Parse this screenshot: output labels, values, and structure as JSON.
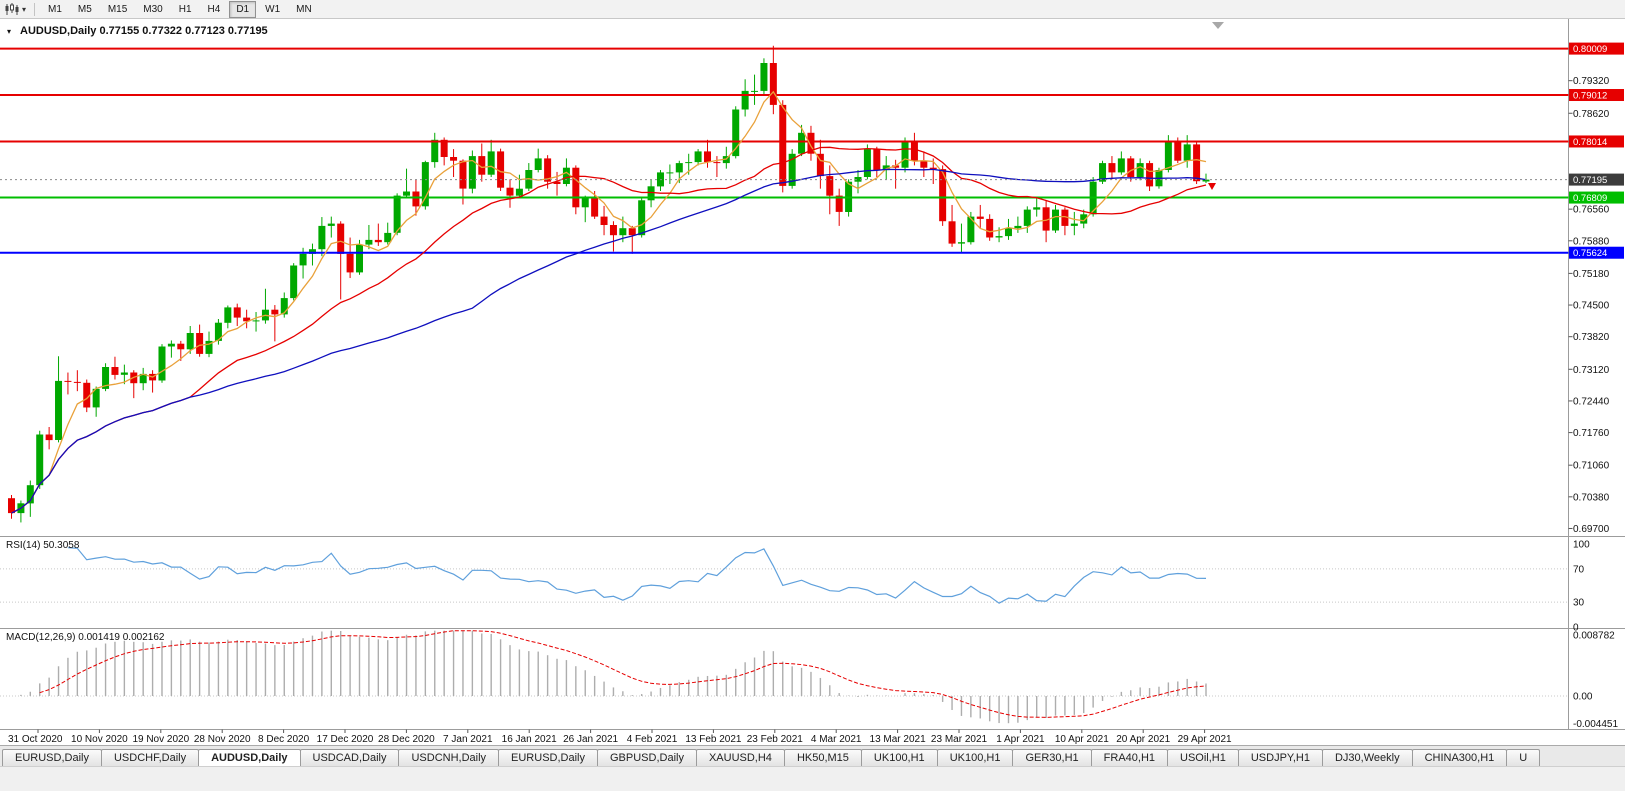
{
  "toolbar": {
    "timeframes": [
      {
        "label": "M1"
      },
      {
        "label": "M5"
      },
      {
        "label": "M15"
      },
      {
        "label": "M30"
      },
      {
        "label": "H1"
      },
      {
        "label": "H4"
      },
      {
        "label": "D1",
        "active": true
      },
      {
        "label": "W1"
      },
      {
        "label": "MN"
      }
    ]
  },
  "chart_header": {
    "symbol": "AUDUSD,Daily",
    "open": "0.77155",
    "high": "0.77322",
    "low": "0.77123",
    "close": "0.77195",
    "text": "AUDUSD,Daily 0.77155 0.77322 0.77123 0.77195"
  },
  "chart_data": {
    "type": "candlestick",
    "symbol": "AUDUSD",
    "timeframe": "Daily",
    "ylim": [
      0.6956,
      0.8043
    ],
    "y_axis_labels": [
      "0.79320",
      "0.78620",
      "0.76560",
      "0.75880",
      "0.75180",
      "0.74500",
      "0.73820",
      "0.73120",
      "0.72440",
      "0.71760",
      "0.71060",
      "0.70380",
      "0.69700"
    ],
    "x_labels": [
      "31 Oct 2020",
      "10 Nov 2020",
      "19 Nov 2020",
      "28 Nov 2020",
      "8 Dec 2020",
      "17 Dec 2020",
      "28 Dec 2020",
      "7 Jan 2021",
      "16 Jan 2021",
      "26 Jan 2021",
      "4 Feb 2021",
      "13 Feb 2021",
      "23 Feb 2021",
      "4 Mar 2021",
      "13 Mar 2021",
      "23 Mar 2021",
      "1 Apr 2021",
      "10 Apr 2021",
      "20 Apr 2021",
      "29 Apr 2021"
    ],
    "candles": [
      [
        0.7035,
        0.7042,
        0.6991,
        0.7003
      ],
      [
        0.7003,
        0.703,
        0.6983,
        0.7024
      ],
      [
        0.7024,
        0.7073,
        0.6995,
        0.7063
      ],
      [
        0.7063,
        0.718,
        0.7055,
        0.7172
      ],
      [
        0.7172,
        0.7188,
        0.714,
        0.716
      ],
      [
        0.716,
        0.734,
        0.7155,
        0.7287
      ],
      [
        0.7287,
        0.7305,
        0.7258,
        0.7285
      ],
      [
        0.7285,
        0.731,
        0.7265,
        0.7283
      ],
      [
        0.7283,
        0.729,
        0.722,
        0.723
      ],
      [
        0.723,
        0.7275,
        0.721,
        0.727
      ],
      [
        0.727,
        0.7325,
        0.7265,
        0.7317
      ],
      [
        0.7317,
        0.7339,
        0.729,
        0.73
      ],
      [
        0.73,
        0.7322,
        0.728,
        0.7305
      ],
      [
        0.7305,
        0.731,
        0.725,
        0.7282
      ],
      [
        0.7282,
        0.7315,
        0.7267,
        0.7302
      ],
      [
        0.7302,
        0.731,
        0.7262,
        0.7288
      ],
      [
        0.7288,
        0.7366,
        0.7283,
        0.7361
      ],
      [
        0.7361,
        0.7374,
        0.7337,
        0.7367
      ],
      [
        0.7367,
        0.7373,
        0.733,
        0.7355
      ],
      [
        0.7355,
        0.7405,
        0.7345,
        0.739
      ],
      [
        0.739,
        0.7408,
        0.7339,
        0.7345
      ],
      [
        0.7345,
        0.7393,
        0.7338,
        0.7373
      ],
      [
        0.7373,
        0.742,
        0.7365,
        0.7412
      ],
      [
        0.7412,
        0.7449,
        0.74,
        0.7445
      ],
      [
        0.7445,
        0.7453,
        0.7405,
        0.7423
      ],
      [
        0.7423,
        0.744,
        0.74,
        0.7415
      ],
      [
        0.7415,
        0.7435,
        0.7393,
        0.7417
      ],
      [
        0.7417,
        0.7485,
        0.741,
        0.744
      ],
      [
        0.744,
        0.745,
        0.7372,
        0.743
      ],
      [
        0.743,
        0.7477,
        0.7423,
        0.7465
      ],
      [
        0.7465,
        0.754,
        0.746,
        0.7535
      ],
      [
        0.7535,
        0.7573,
        0.7507,
        0.756
      ],
      [
        0.756,
        0.7582,
        0.7535,
        0.757
      ],
      [
        0.757,
        0.7639,
        0.7555,
        0.762
      ],
      [
        0.762,
        0.764,
        0.7595,
        0.7625
      ],
      [
        0.7625,
        0.763,
        0.7462,
        0.756
      ],
      [
        0.756,
        0.7595,
        0.7508,
        0.752
      ],
      [
        0.752,
        0.759,
        0.7515,
        0.758
      ],
      [
        0.758,
        0.7622,
        0.757,
        0.759
      ],
      [
        0.759,
        0.7625,
        0.7577,
        0.7585
      ],
      [
        0.7585,
        0.7627,
        0.758,
        0.7605
      ],
      [
        0.7605,
        0.769,
        0.76,
        0.7685
      ],
      [
        0.7685,
        0.7743,
        0.768,
        0.7694
      ],
      [
        0.7694,
        0.772,
        0.7642,
        0.7662
      ],
      [
        0.7662,
        0.776,
        0.7655,
        0.7757
      ],
      [
        0.7757,
        0.782,
        0.7745,
        0.7805
      ],
      [
        0.7805,
        0.781,
        0.775,
        0.7768
      ],
      [
        0.7768,
        0.7785,
        0.7725,
        0.776
      ],
      [
        0.776,
        0.7763,
        0.7666,
        0.77
      ],
      [
        0.77,
        0.7782,
        0.769,
        0.777
      ],
      [
        0.777,
        0.7797,
        0.7715,
        0.773
      ],
      [
        0.773,
        0.7805,
        0.7725,
        0.778
      ],
      [
        0.778,
        0.7786,
        0.7695,
        0.7702
      ],
      [
        0.7702,
        0.772,
        0.7659,
        0.7685
      ],
      [
        0.7685,
        0.773,
        0.768,
        0.77
      ],
      [
        0.77,
        0.7755,
        0.7695,
        0.774
      ],
      [
        0.774,
        0.7786,
        0.7735,
        0.7765
      ],
      [
        0.7765,
        0.7772,
        0.77,
        0.7715
      ],
      [
        0.7715,
        0.7736,
        0.7685,
        0.771
      ],
      [
        0.771,
        0.7765,
        0.7705,
        0.7745
      ],
      [
        0.7745,
        0.775,
        0.7645,
        0.766
      ],
      [
        0.766,
        0.7685,
        0.7628,
        0.768
      ],
      [
        0.768,
        0.7695,
        0.7635,
        0.764
      ],
      [
        0.764,
        0.7663,
        0.76,
        0.7622
      ],
      [
        0.7622,
        0.763,
        0.7565,
        0.76
      ],
      [
        0.76,
        0.764,
        0.7585,
        0.7615
      ],
      [
        0.7615,
        0.762,
        0.756,
        0.76
      ],
      [
        0.76,
        0.768,
        0.7595,
        0.7675
      ],
      [
        0.7675,
        0.772,
        0.766,
        0.7705
      ],
      [
        0.7705,
        0.774,
        0.7695,
        0.7735
      ],
      [
        0.7735,
        0.7752,
        0.771,
        0.7735
      ],
      [
        0.7735,
        0.776,
        0.7712,
        0.7755
      ],
      [
        0.7755,
        0.7775,
        0.773,
        0.7757
      ],
      [
        0.7757,
        0.7785,
        0.775,
        0.778
      ],
      [
        0.778,
        0.7805,
        0.7745,
        0.7757
      ],
      [
        0.7757,
        0.777,
        0.7725,
        0.7755
      ],
      [
        0.7755,
        0.779,
        0.7743,
        0.777
      ],
      [
        0.777,
        0.7877,
        0.7765,
        0.787
      ],
      [
        0.787,
        0.7935,
        0.7855,
        0.791
      ],
      [
        0.791,
        0.7945,
        0.788,
        0.791
      ],
      [
        0.791,
        0.798,
        0.79,
        0.797
      ],
      [
        0.797,
        0.8007,
        0.786,
        0.788
      ],
      [
        0.788,
        0.789,
        0.7692,
        0.7706
      ],
      [
        0.7706,
        0.7785,
        0.77,
        0.7775
      ],
      [
        0.7775,
        0.7837,
        0.777,
        0.782
      ],
      [
        0.782,
        0.7835,
        0.776,
        0.7775
      ],
      [
        0.7775,
        0.7805,
        0.77,
        0.7727
      ],
      [
        0.7727,
        0.775,
        0.7645,
        0.7685
      ],
      [
        0.7685,
        0.77,
        0.762,
        0.765
      ],
      [
        0.765,
        0.772,
        0.764,
        0.7715
      ],
      [
        0.7715,
        0.774,
        0.769,
        0.7725
      ],
      [
        0.7725,
        0.7795,
        0.772,
        0.7785
      ],
      [
        0.7785,
        0.779,
        0.7725,
        0.774
      ],
      [
        0.774,
        0.777,
        0.772,
        0.775
      ],
      [
        0.775,
        0.7762,
        0.77,
        0.7745
      ],
      [
        0.7745,
        0.781,
        0.7735,
        0.78
      ],
      [
        0.78,
        0.782,
        0.775,
        0.776
      ],
      [
        0.776,
        0.778,
        0.7725,
        0.7745
      ],
      [
        0.7745,
        0.7765,
        0.771,
        0.7742
      ],
      [
        0.7742,
        0.775,
        0.762,
        0.763
      ],
      [
        0.763,
        0.7665,
        0.7575,
        0.7582
      ],
      [
        0.7582,
        0.7625,
        0.7563,
        0.7585
      ],
      [
        0.7585,
        0.765,
        0.758,
        0.764
      ],
      [
        0.764,
        0.7665,
        0.7615,
        0.7635
      ],
      [
        0.7635,
        0.7645,
        0.7588,
        0.7595
      ],
      [
        0.7595,
        0.7617,
        0.7585,
        0.7598
      ],
      [
        0.7598,
        0.7635,
        0.759,
        0.7615
      ],
      [
        0.7615,
        0.764,
        0.7605,
        0.762
      ],
      [
        0.762,
        0.7662,
        0.7605,
        0.7655
      ],
      [
        0.7655,
        0.768,
        0.764,
        0.766
      ],
      [
        0.766,
        0.7675,
        0.7585,
        0.761
      ],
      [
        0.761,
        0.7665,
        0.7605,
        0.7655
      ],
      [
        0.7655,
        0.766,
        0.76,
        0.762
      ],
      [
        0.762,
        0.765,
        0.76,
        0.7625
      ],
      [
        0.7625,
        0.7655,
        0.7615,
        0.7645
      ],
      [
        0.7645,
        0.7725,
        0.764,
        0.7715
      ],
      [
        0.7715,
        0.776,
        0.771,
        0.7755
      ],
      [
        0.7755,
        0.777,
        0.772,
        0.7735
      ],
      [
        0.7735,
        0.778,
        0.773,
        0.7765
      ],
      [
        0.7765,
        0.777,
        0.7715,
        0.7725
      ],
      [
        0.7725,
        0.7765,
        0.7718,
        0.7755
      ],
      [
        0.7755,
        0.776,
        0.7695,
        0.7705
      ],
      [
        0.7705,
        0.7745,
        0.77,
        0.774
      ],
      [
        0.774,
        0.7815,
        0.7735,
        0.78
      ],
      [
        0.78,
        0.781,
        0.7755,
        0.776
      ],
      [
        0.776,
        0.7815,
        0.7745,
        0.7795
      ],
      [
        0.7795,
        0.78,
        0.771,
        0.7716
      ],
      [
        0.77155,
        0.77322,
        0.77123,
        0.77195
      ]
    ],
    "horizontal_lines": [
      {
        "value": 0.80009,
        "label": "0.80009",
        "color": "#E60000"
      },
      {
        "value": 0.79012,
        "label": "0.79012",
        "color": "#E60000"
      },
      {
        "value": 0.78014,
        "label": "0.78014",
        "color": "#E60000"
      },
      {
        "value": 0.76809,
        "label": "0.76809",
        "color": "#00BE00"
      },
      {
        "value": 0.75624,
        "label": "0.75624",
        "color": "#0000FF"
      }
    ],
    "current_price": {
      "value": 0.77195,
      "label": "0.77195"
    },
    "moving_averages": [
      {
        "period": 5,
        "color": "#E9A13A"
      },
      {
        "period": 20,
        "color": "#E60000"
      },
      {
        "period": 50,
        "color": "#0F0FBE"
      }
    ],
    "indicators": {
      "rsi": {
        "label": "RSI(14) 50.3058",
        "name": "RSI",
        "period": 14,
        "value": "50.3058",
        "levels": [
          70,
          30
        ],
        "scale_labels": [
          "100",
          "70",
          "30",
          "0"
        ],
        "color": "#5FA0DC"
      },
      "macd": {
        "label": "MACD(12,26,9) 0.001419 0.002162",
        "name": "MACD",
        "fast": 12,
        "slow": 26,
        "signal_period": 9,
        "value": "0.001419",
        "signal_value": "0.002162",
        "scale_labels": [
          "0.008782",
          "0.00",
          "-0.004451"
        ],
        "histogram_color": "#ADADAD",
        "signal_color": "#E60000"
      }
    }
  },
  "tabbar": {
    "tabs": [
      {
        "label": "EURUSD,Daily"
      },
      {
        "label": "USDCHF,Daily"
      },
      {
        "label": "AUDUSD,Daily",
        "active": true
      },
      {
        "label": "USDCAD,Daily"
      },
      {
        "label": "USDCNH,Daily"
      },
      {
        "label": "EURUSD,Daily"
      },
      {
        "label": "GBPUSD,Daily"
      },
      {
        "label": "XAUUSD,H4"
      },
      {
        "label": "HK50,M15"
      },
      {
        "label": "UK100,H1"
      },
      {
        "label": "UK100,H1"
      },
      {
        "label": "GER30,H1"
      },
      {
        "label": "FRA40,H1"
      },
      {
        "label": "USOil,H1"
      },
      {
        "label": "USDJPY,H1"
      },
      {
        "label": "DJ30,Weekly"
      },
      {
        "label": "CHINA300,H1"
      },
      {
        "label": "U"
      }
    ]
  },
  "colors": {
    "background": "#FFFFFF",
    "bull": "#00A800",
    "bear": "#E60000",
    "axis_text": "#111111"
  }
}
